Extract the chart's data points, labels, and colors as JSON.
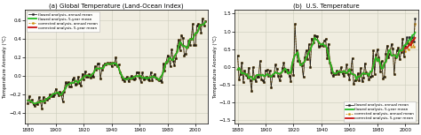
{
  "title_a": "(a) Global Temperature (Land-Ocean Index)",
  "title_b": "(b)  U.S. Temperature",
  "ylabel": "Temperature Anomaly (°C)",
  "ylim_a": [
    -0.52,
    0.72
  ],
  "ylim_b": [
    -1.6,
    1.62
  ],
  "yticks_a": [
    -0.4,
    -0.2,
    0.0,
    0.2,
    0.4,
    0.6
  ],
  "yticks_b": [
    -1.5,
    -1.0,
    -0.5,
    0.0,
    0.5,
    1.0,
    1.5
  ],
  "xticks": [
    1880,
    1900,
    1920,
    1940,
    1960,
    1980,
    2000
  ],
  "legend_labels": [
    "flawed analysis, annual mean",
    "flawed analysis, 5-year mean",
    "corrected analysis, annual mean",
    "corrected analysis, 5-year mean"
  ],
  "color_black": "#1a1a1a",
  "color_green": "#22bb22",
  "color_orange": "#cc8800",
  "color_red": "#cc1111",
  "background_color": "#f0ede0",
  "grid_color": "#ccccbb"
}
